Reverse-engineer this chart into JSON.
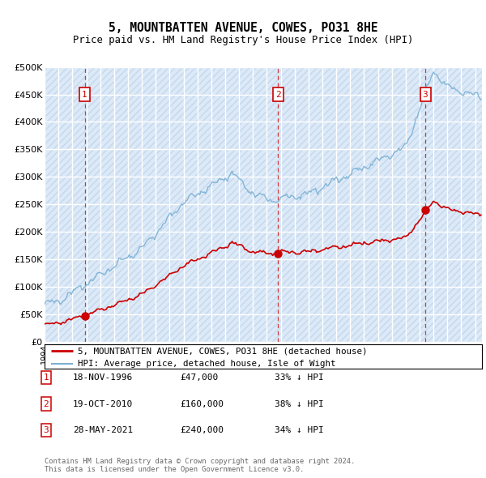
{
  "title": "5, MOUNTBATTEN AVENUE, COWES, PO31 8HE",
  "subtitle": "Price paid vs. HM Land Registry's House Price Index (HPI)",
  "ylim": [
    0,
    500000
  ],
  "yticks": [
    0,
    50000,
    100000,
    150000,
    200000,
    250000,
    300000,
    350000,
    400000,
    450000,
    500000
  ],
  "ytick_labels": [
    "£0",
    "£50K",
    "£100K",
    "£150K",
    "£200K",
    "£250K",
    "£300K",
    "£350K",
    "£400K",
    "£450K",
    "£500K"
  ],
  "xlim_start": 1994.0,
  "xlim_end": 2025.5,
  "background_color": "#dce9f7",
  "grid_color": "#ffffff",
  "hatch_color": "#c5d8ee",
  "sales": [
    {
      "year": 1996.88,
      "price": 47000,
      "label": "1"
    },
    {
      "year": 2010.8,
      "price": 160000,
      "label": "2"
    },
    {
      "year": 2021.41,
      "price": 240000,
      "label": "3"
    }
  ],
  "sale_dates": [
    "18-NOV-1996",
    "19-OCT-2010",
    "28-MAY-2021"
  ],
  "sale_prices": [
    "£47,000",
    "£160,000",
    "£240,000"
  ],
  "sale_pcts": [
    "33% ↓ HPI",
    "38% ↓ HPI",
    "34% ↓ HPI"
  ],
  "legend_property": "5, MOUNTBATTEN AVENUE, COWES, PO31 8HE (detached house)",
  "legend_hpi": "HPI: Average price, detached house, Isle of Wight",
  "footer": "Contains HM Land Registry data © Crown copyright and database right 2024.\nThis data is licensed under the Open Government Licence v3.0.",
  "red_line_color": "#cc0000",
  "blue_line_color": "#7ab0d4",
  "marker_color": "#cc0000",
  "vline_color": "#cc0000",
  "box_color": "#cc0000"
}
